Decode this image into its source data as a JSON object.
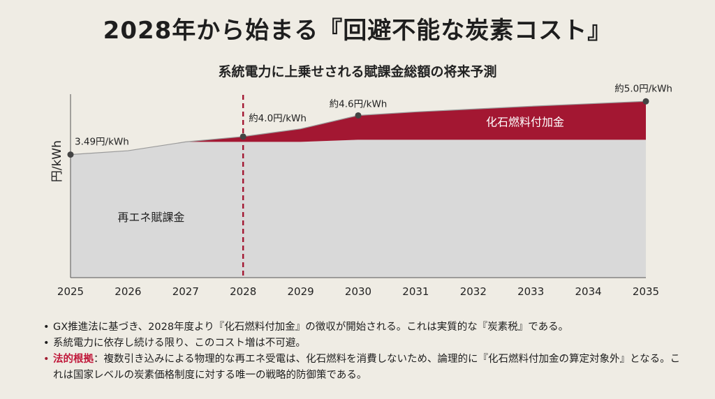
{
  "title": "2028年から始まる『回避不能な炭素コスト』",
  "subtitle": "系統電力に上乗せされる賦課金総額の将来予測",
  "chart_data": {
    "type": "area",
    "title": "系統電力に上乗せされる賦課金総額の将来予測",
    "ylabel": "円/kWh",
    "xlabel": "",
    "ylim": [
      0,
      5.5
    ],
    "grid": false,
    "x": [
      2025,
      2026,
      2027,
      2028,
      2029,
      2030,
      2031,
      2032,
      2033,
      2034,
      2035
    ],
    "x_ticks": [
      "2025",
      "2026",
      "2027",
      "2028",
      "2029",
      "2030",
      "2031",
      "2032",
      "2033",
      "2034",
      "2035"
    ],
    "total_line": [
      3.49,
      3.6,
      3.85,
      4.0,
      4.22,
      4.6,
      4.7,
      4.78,
      4.86,
      4.93,
      5.0
    ],
    "series": [
      {
        "name": "再エネ賦課金",
        "values": [
          3.49,
          3.6,
          3.85,
          3.85,
          3.85,
          3.91,
          3.91,
          3.91,
          3.91,
          3.91,
          3.91
        ],
        "color": "#d9d9d9"
      },
      {
        "name": "化石燃料付加金",
        "values": [
          0,
          0,
          0,
          0.15,
          0.37,
          0.69,
          0.79,
          0.87,
          0.95,
          1.02,
          1.09
        ],
        "color": "#a31732"
      }
    ],
    "marker_year": 2028,
    "marker_color": "#a31732",
    "annotations": [
      {
        "x": 2025,
        "y": 3.49,
        "label": "3.49円/kWh",
        "anchor": "start",
        "dx": 6,
        "dy": -14
      },
      {
        "x": 2028,
        "y": 4.0,
        "label": "約4.0円/kWh",
        "anchor": "start",
        "dx": 8,
        "dy": -22
      },
      {
        "x": 2030,
        "y": 4.6,
        "label": "約4.6円/kWh",
        "anchor": "middle",
        "dx": 0,
        "dy": -12
      },
      {
        "x": 2035,
        "y": 5.0,
        "label": "約5.0円/kWh",
        "anchor": "end",
        "dx": 38,
        "dy": -14
      }
    ],
    "area_labels": [
      {
        "text": "再エネ賦課金",
        "x": 2026.4,
        "y": 1.6,
        "color": "#222222"
      },
      {
        "text": "化石燃料付加金",
        "x": 2032.9,
        "y": 4.3,
        "color": "#ffffff"
      }
    ]
  },
  "bullets": [
    {
      "text": "GX推進法に基づき、2028年度より『化石燃料付加金』の徴収が開始される。これは実質的な『炭素税』である。"
    },
    {
      "text": "系統電力に依存し続ける限り、このコスト増は不可避。"
    },
    {
      "label": "法的根拠",
      "sep": "：",
      "text": "複数引き込みによる物理的な再エネ受電は、化石燃料を消費しないため、論理的に『化石燃料付加金の算定対象外』となる。これは国家レベルの炭素価格制度に対する唯一の戦略的防御策である。"
    }
  ]
}
